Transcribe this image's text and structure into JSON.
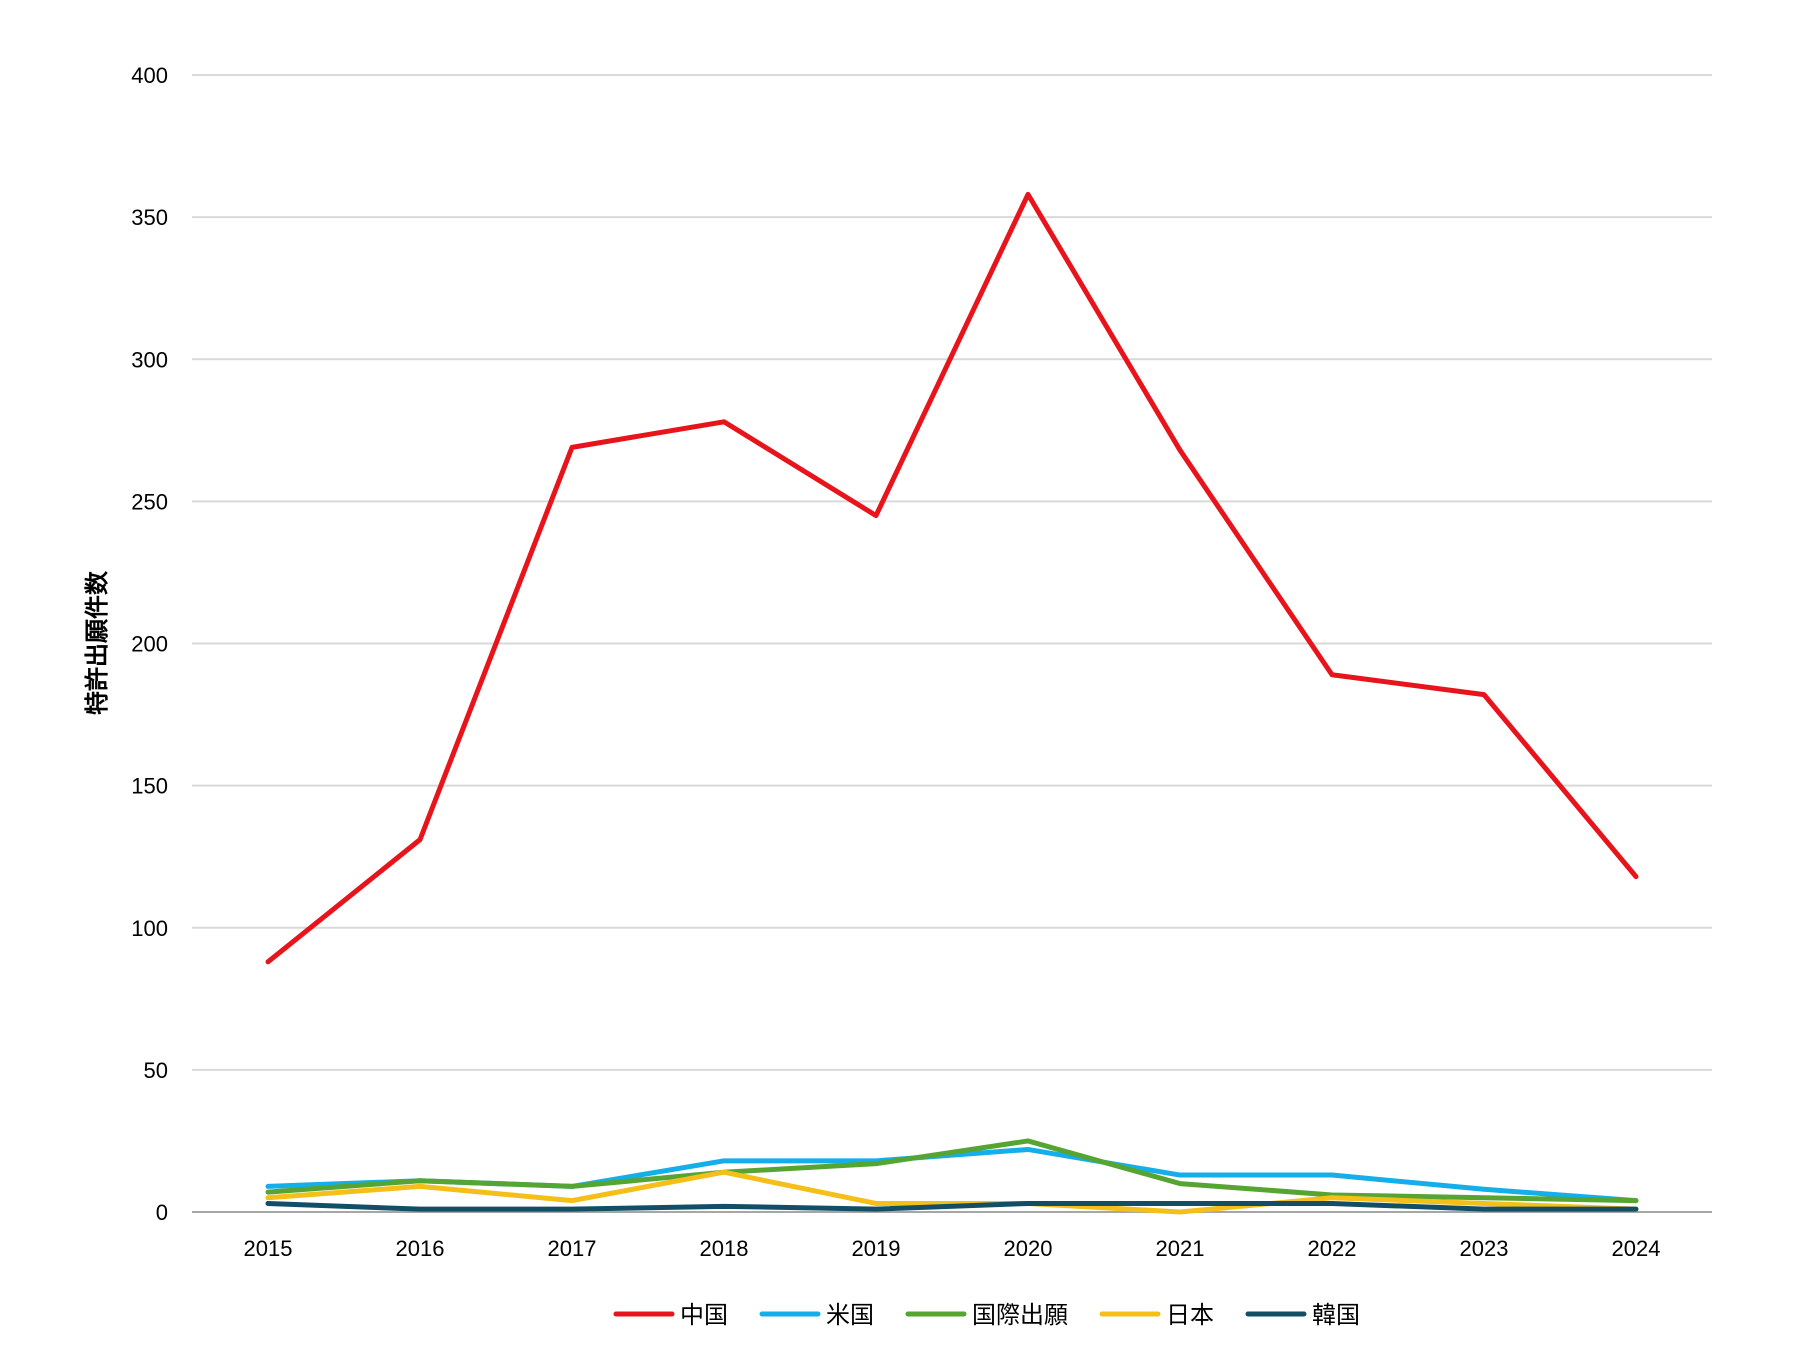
{
  "chart_data": {
    "type": "line",
    "title": "",
    "xlabel": "",
    "ylabel": "特許出願件数",
    "ylim": [
      0,
      400
    ],
    "yticks": [
      0,
      50,
      100,
      150,
      200,
      250,
      300,
      350,
      400
    ],
    "grid": true,
    "legend_position": "bottom",
    "categories": [
      "2015",
      "2016",
      "2017",
      "2018",
      "2019",
      "2020",
      "2021",
      "2022",
      "2023",
      "2024"
    ],
    "series": [
      {
        "name": "中国",
        "color": "#E8141B",
        "values": [
          88,
          131,
          269,
          278,
          245,
          358,
          268,
          189,
          182,
          118
        ]
      },
      {
        "name": "米国",
        "color": "#14AEEA",
        "values": [
          9,
          11,
          9,
          18,
          18,
          22,
          13,
          13,
          8,
          4
        ]
      },
      {
        "name": "国際出願",
        "color": "#56A532",
        "values": [
          7,
          11,
          9,
          14,
          17,
          25,
          10,
          6,
          5,
          4
        ]
      },
      {
        "name": "日本",
        "color": "#F5BF19",
        "values": [
          5,
          9,
          4,
          14,
          3,
          3,
          0,
          5,
          3,
          1
        ]
      },
      {
        "name": "韓国",
        "color": "#124E66",
        "values": [
          3,
          1,
          1,
          2,
          1,
          3,
          3,
          3,
          1,
          1
        ]
      }
    ]
  }
}
